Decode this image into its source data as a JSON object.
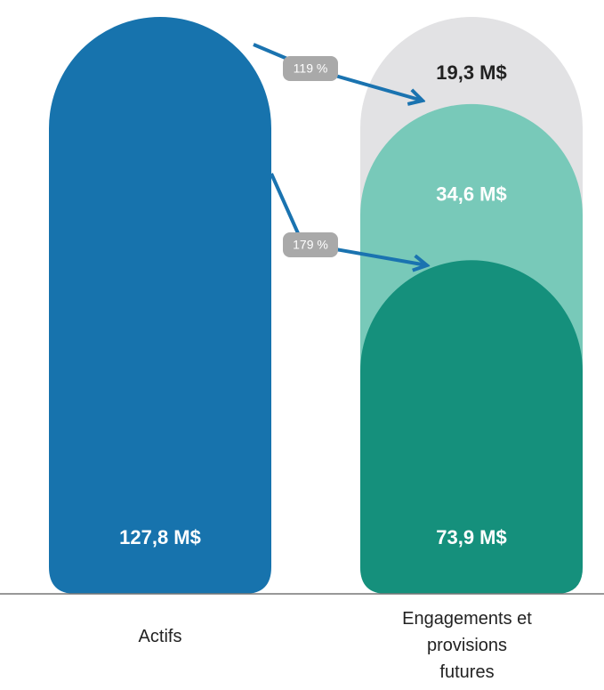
{
  "chart_data": {
    "type": "rounded-stack",
    "categories": [
      "Actifs",
      "Engagements et provisions futures"
    ],
    "stacks": [
      {
        "values": [
          127.8
        ],
        "value_labels": [
          "127,8 M$"
        ],
        "colors": [
          "#1773ad"
        ],
        "label_colors": [
          "#ffffff"
        ]
      },
      {
        "values": [
          73.9,
          34.6,
          19.3
        ],
        "value_labels": [
          "73,9 M$",
          "34,6 M$",
          "19,3 M$"
        ],
        "colors": [
          "#15907c",
          "#78c9b9",
          "#e2e2e4"
        ],
        "label_colors": [
          "#ffffff",
          "#ffffff",
          "#222222"
        ]
      }
    ],
    "annotations": [
      "119 %",
      "179 %"
    ],
    "ylim": [
      0,
      128
    ]
  }
}
